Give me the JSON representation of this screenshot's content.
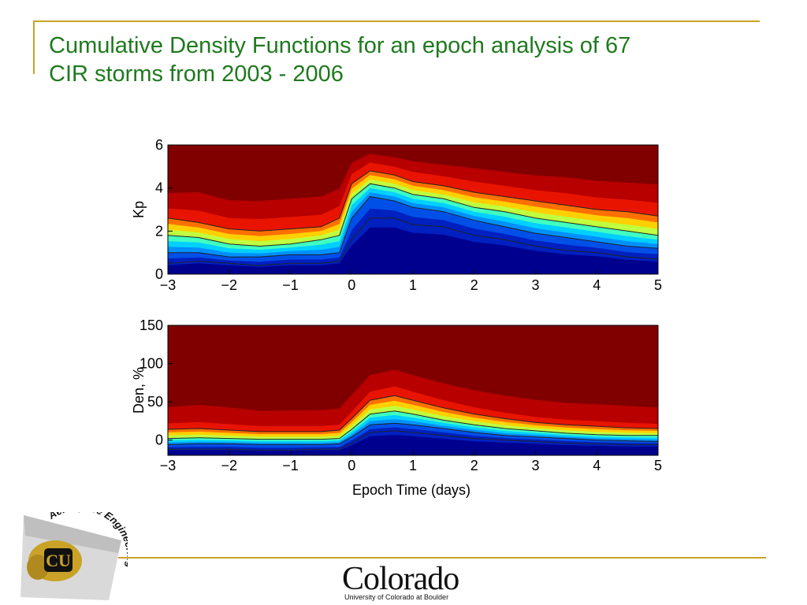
{
  "title": {
    "line1": "Cumulative Density Functions for an epoch analysis of 67",
    "line2": "CIR storms from 2003 - 2006"
  },
  "chart_data": [
    {
      "type": "heatmap",
      "ylabel": "Kp",
      "xlabel": "",
      "xlim": [
        -3,
        5
      ],
      "ylim": [
        0,
        6
      ],
      "xticks": [
        -3,
        -2,
        -1,
        0,
        1,
        2,
        3,
        4,
        5
      ],
      "yticks": [
        0,
        2,
        4,
        6
      ],
      "colormap": [
        "#00008f",
        "#0020c0",
        "#0050e8",
        "#0090ff",
        "#00d0ff",
        "#40ffbf",
        "#c0ff40",
        "#ffd000",
        "#ff7000",
        "#e81400",
        "#b80000",
        "#800000"
      ],
      "contour_levels": [
        0.1,
        0.25,
        0.5,
        0.75,
        0.9,
        1.0
      ],
      "x": [
        -3,
        -2.5,
        -2,
        -1.5,
        -1,
        -0.5,
        -0.2,
        0,
        0.3,
        0.7,
        1,
        1.5,
        2,
        2.5,
        3,
        3.5,
        4,
        4.5,
        5
      ],
      "percentiles": [
        {
          "level": 0.1,
          "values": [
            0.5,
            0.6,
            0.5,
            0.4,
            0.5,
            0.5,
            0.6,
            1.6,
            2.6,
            2.6,
            2.3,
            2.2,
            1.8,
            1.6,
            1.3,
            1.1,
            1.0,
            0.8,
            0.7
          ]
        },
        {
          "level": 0.25,
          "values": [
            1.0,
            1.0,
            0.8,
            0.8,
            0.9,
            0.9,
            1.0,
            2.6,
            3.6,
            3.4,
            3.1,
            2.9,
            2.5,
            2.2,
            1.9,
            1.7,
            1.5,
            1.3,
            1.2
          ]
        },
        {
          "level": 0.5,
          "values": [
            1.8,
            1.7,
            1.4,
            1.3,
            1.4,
            1.6,
            1.8,
            3.5,
            4.2,
            4.0,
            3.7,
            3.5,
            3.1,
            2.9,
            2.6,
            2.4,
            2.2,
            2.0,
            1.8
          ]
        },
        {
          "level": 0.75,
          "values": [
            2.6,
            2.4,
            2.1,
            2.0,
            2.1,
            2.2,
            2.6,
            4.2,
            4.8,
            4.6,
            4.3,
            4.1,
            3.8,
            3.6,
            3.4,
            3.2,
            3.0,
            2.9,
            2.7
          ]
        },
        {
          "level": 0.9,
          "values": [
            3.4,
            3.4,
            3.0,
            3.0,
            3.1,
            3.2,
            3.6,
            5.0,
            5.5,
            5.3,
            5.1,
            4.9,
            4.7,
            4.5,
            4.3,
            4.2,
            4.0,
            3.9,
            3.8
          ]
        },
        {
          "level": 1.0,
          "values": [
            5.6,
            5.8,
            5.6,
            5.4,
            5.5,
            5.6,
            5.8,
            6.0,
            6.0,
            6.0,
            6.0,
            6.0,
            6.0,
            6.0,
            6.0,
            6.0,
            6.0,
            6.0,
            6.0
          ]
        }
      ]
    },
    {
      "type": "heatmap",
      "ylabel": "Den, %",
      "xlabel": "Epoch Time (days)",
      "xlim": [
        -3,
        5
      ],
      "ylim": [
        -20,
        150
      ],
      "xticks": [
        -3,
        -2,
        -1,
        0,
        1,
        2,
        3,
        4,
        5
      ],
      "yticks": [
        0,
        50,
        100,
        150
      ],
      "colormap": [
        "#00008f",
        "#0020c0",
        "#0050e8",
        "#0090ff",
        "#00d0ff",
        "#40ffbf",
        "#c0ff40",
        "#ffd000",
        "#ff7000",
        "#e81400",
        "#b80000",
        "#800000"
      ],
      "contour_levels": [
        0.1,
        0.25,
        0.5,
        0.75,
        0.9,
        1.0
      ],
      "x": [
        -3,
        -2.5,
        -2,
        -1.5,
        -1,
        -0.5,
        -0.2,
        0,
        0.3,
        0.7,
        1,
        1.5,
        2,
        2.5,
        3,
        3.5,
        4,
        4.5,
        5
      ],
      "percentiles": [
        {
          "level": 0.1,
          "values": [
            -12,
            -12,
            -12,
            -13,
            -13,
            -12,
            -12,
            -4,
            10,
            12,
            10,
            6,
            2,
            0,
            -2,
            -4,
            -5,
            -6,
            -6
          ]
        },
        {
          "level": 0.25,
          "values": [
            -6,
            -5,
            -5,
            -6,
            -6,
            -6,
            -5,
            4,
            20,
            22,
            20,
            15,
            10,
            6,
            4,
            2,
            0,
            -1,
            -2
          ]
        },
        {
          "level": 0.5,
          "values": [
            2,
            3,
            2,
            1,
            1,
            1,
            2,
            14,
            34,
            38,
            34,
            26,
            20,
            15,
            12,
            9,
            7,
            6,
            6
          ]
        },
        {
          "level": 0.75,
          "values": [
            14,
            15,
            13,
            11,
            11,
            11,
            13,
            28,
            52,
            58,
            52,
            42,
            34,
            28,
            23,
            20,
            18,
            16,
            15
          ]
        },
        {
          "level": 0.9,
          "values": [
            28,
            30,
            27,
            24,
            24,
            24,
            26,
            44,
            72,
            80,
            72,
            60,
            50,
            42,
            36,
            32,
            30,
            28,
            26
          ]
        },
        {
          "level": 1.0,
          "values": [
            118,
            125,
            120,
            110,
            112,
            115,
            118,
            135,
            150,
            150,
            150,
            145,
            140,
            138,
            135,
            132,
            130,
            128,
            126
          ]
        }
      ]
    }
  ],
  "footer": {
    "badge_text": "Aerospace Engineering",
    "logo_monogram": "CU",
    "wordmark": "Colorado",
    "subline": "University of Colorado at Boulder"
  },
  "colors": {
    "title": "#1e7a1e",
    "rule": "#c9a227"
  }
}
